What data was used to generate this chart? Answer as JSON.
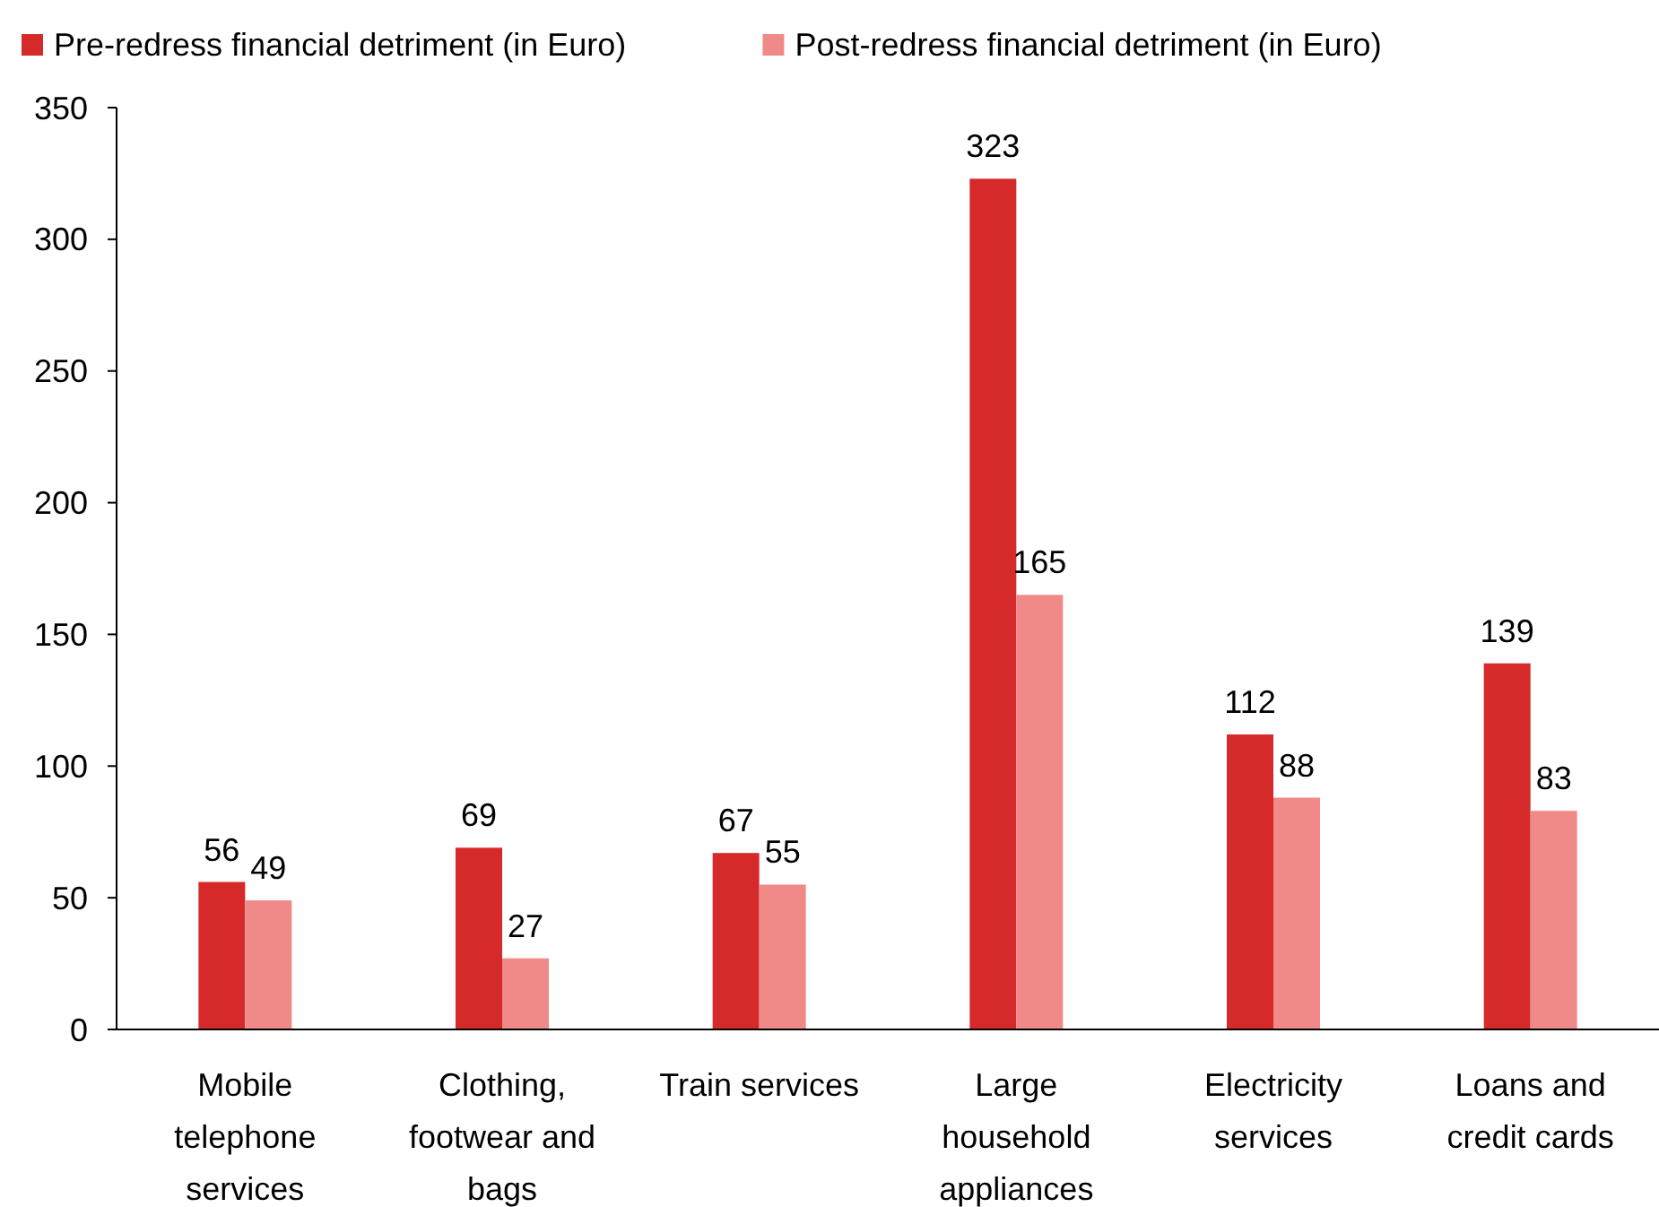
{
  "chart_data": {
    "type": "bar",
    "categories": [
      "Mobile telephone services",
      "Clothing, footwear and bags",
      "Train services",
      "Large household appliances",
      "Electricity services",
      "Loans and credit cards"
    ],
    "series": [
      {
        "name": "Pre-redress financial detriment (in Euro)",
        "color": "#d62a2a",
        "values": [
          56,
          69,
          67,
          323,
          112,
          139
        ]
      },
      {
        "name": "Post-redress financial detriment (in Euro)",
        "color": "#f08a88",
        "values": [
          49,
          27,
          55,
          165,
          88,
          83
        ]
      }
    ],
    "ylim": [
      0,
      350
    ],
    "yticks": [
      0,
      50,
      100,
      150,
      200,
      250,
      300,
      350
    ],
    "data_labels": true,
    "legend": "top left",
    "grid": false
  }
}
